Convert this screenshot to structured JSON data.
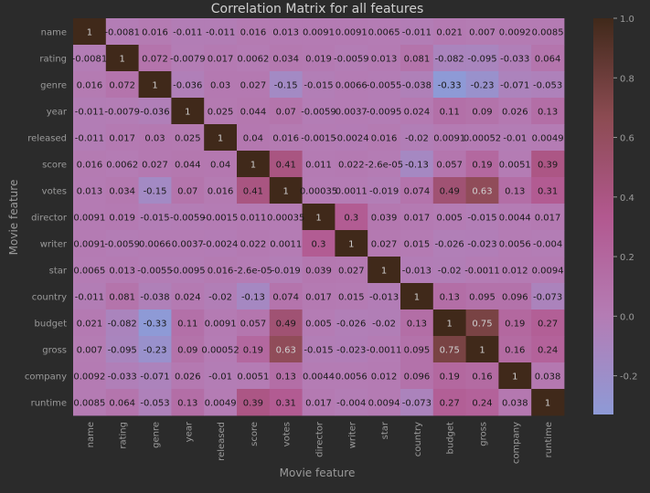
{
  "chart_data": {
    "type": "heatmap",
    "title": "Correlation Matrix for all features",
    "xlabel": "Movie feature",
    "ylabel": "Movie feature",
    "labels": [
      "name",
      "rating",
      "genre",
      "year",
      "released",
      "score",
      "votes",
      "director",
      "writer",
      "star",
      "country",
      "budget",
      "gross",
      "company",
      "runtime"
    ],
    "matrix": [
      [
        "1",
        "-0.0081",
        "0.016",
        "-0.011",
        "-0.011",
        "0.016",
        "0.013",
        "0.0091",
        "0.0091",
        "0.0065",
        "-0.011",
        "0.021",
        "0.007",
        "0.0092",
        "0.0085"
      ],
      [
        "-0.0081",
        "1",
        "0.072",
        "-0.0079",
        "0.017",
        "0.0062",
        "0.034",
        "0.019",
        "-0.0059",
        "0.013",
        "0.081",
        "-0.082",
        "-0.095",
        "-0.033",
        "0.064"
      ],
      [
        "0.016",
        "0.072",
        "1",
        "-0.036",
        "0.03",
        "0.027",
        "-0.15",
        "-0.015",
        "0.0066",
        "-0.0055",
        "-0.038",
        "-0.33",
        "-0.23",
        "-0.071",
        "-0.053"
      ],
      [
        "-0.011",
        "-0.0079",
        "-0.036",
        "1",
        "0.025",
        "0.044",
        "0.07",
        "-0.0059",
        "0.0037",
        "-0.0095",
        "0.024",
        "0.11",
        "0.09",
        "0.026",
        "0.13"
      ],
      [
        "-0.011",
        "0.017",
        "0.03",
        "0.025",
        "1",
        "0.04",
        "0.016",
        "-0.0015",
        "-0.0024",
        "0.016",
        "-0.02",
        "0.0091",
        "0.00052",
        "-0.01",
        "0.0049"
      ],
      [
        "0.016",
        "0.0062",
        "0.027",
        "0.044",
        "0.04",
        "1",
        "0.41",
        "0.011",
        "0.022",
        "-2.6e-05",
        "-0.13",
        "0.057",
        "0.19",
        "0.0051",
        "0.39"
      ],
      [
        "0.013",
        "0.034",
        "-0.15",
        "0.07",
        "0.016",
        "0.41",
        "1",
        "0.00035",
        "0.0011",
        "-0.019",
        "0.074",
        "0.49",
        "0.63",
        "0.13",
        "0.31"
      ],
      [
        "0.0091",
        "0.019",
        "-0.015",
        "-0.0059",
        "-0.0015",
        "0.011",
        "0.00035",
        "1",
        "0.3",
        "0.039",
        "0.017",
        "0.005",
        "-0.015",
        "0.0044",
        "0.017"
      ],
      [
        "0.0091",
        "-0.0059",
        "0.0066",
        "0.0037",
        "-0.0024",
        "0.022",
        "0.0011",
        "0.3",
        "1",
        "0.027",
        "0.015",
        "-0.026",
        "-0.023",
        "0.0056",
        "-0.004"
      ],
      [
        "0.0065",
        "0.013",
        "-0.0055",
        "-0.0095",
        "0.016",
        "-2.6e-05",
        "-0.019",
        "0.039",
        "0.027",
        "1",
        "-0.013",
        "-0.02",
        "-0.0011",
        "0.012",
        "0.0094"
      ],
      [
        "-0.011",
        "0.081",
        "-0.038",
        "0.024",
        "-0.02",
        "-0.13",
        "0.074",
        "0.017",
        "0.015",
        "-0.013",
        "1",
        "0.13",
        "0.095",
        "0.096",
        "-0.073"
      ],
      [
        "0.021",
        "-0.082",
        "-0.33",
        "0.11",
        "0.0091",
        "0.057",
        "0.49",
        "0.005",
        "-0.026",
        "-0.02",
        "0.13",
        "1",
        "0.75",
        "0.19",
        "0.27"
      ],
      [
        "0.007",
        "-0.095",
        "-0.23",
        "0.09",
        "0.00052",
        "0.19",
        "0.63",
        "-0.015",
        "-0.023",
        "-0.0011",
        "0.095",
        "0.75",
        "1",
        "0.16",
        "0.24"
      ],
      [
        "0.0092",
        "-0.033",
        "-0.071",
        "0.026",
        "-0.01",
        "0.0051",
        "0.13",
        "0.0044",
        "0.0056",
        "0.012",
        "0.096",
        "0.19",
        "0.16",
        "1",
        "0.038"
      ],
      [
        "0.0085",
        "0.064",
        "-0.053",
        "0.13",
        "0.0049",
        "0.39",
        "0.31",
        "0.017",
        "-0.004",
        "0.0094",
        "-0.073",
        "0.27",
        "0.24",
        "0.038",
        "1"
      ]
    ],
    "vmin": -0.33,
    "vmax": 1.0,
    "colorbar_ticks": [
      "1.0",
      "0.8",
      "0.6",
      "0.4",
      "0.2",
      "0.0",
      "-0.2"
    ],
    "colormap": [
      "#8e9ad6",
      "#b47cb4",
      "#b2588f",
      "#8c4b52",
      "#40291a"
    ],
    "background": "#2b2b2b",
    "text_color": "#9a9a9a",
    "annotation_color": "#1a1a1a",
    "annotation_color_dark_cells": "#cfcfcf",
    "title_color": "#d0d0d0"
  }
}
